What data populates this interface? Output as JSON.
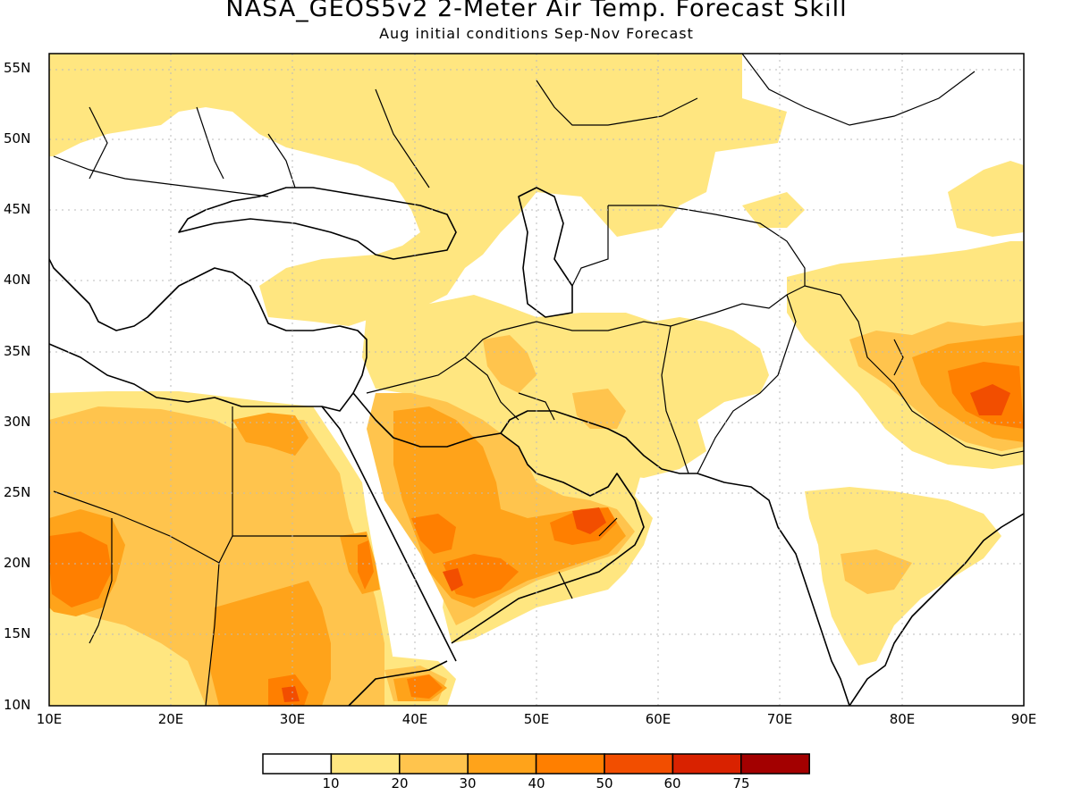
{
  "title": "NASA_GEOS5v2 2-Meter Air Temp. Forecast Skill",
  "subtitle": "Aug initial conditions  Sep-Nov Forecast",
  "map": {
    "lon_range": [
      10,
      90
    ],
    "lat_range": [
      10,
      56
    ],
    "lat_labels": [
      "55N",
      "50N",
      "45N",
      "40N",
      "35N",
      "30N",
      "25N",
      "20N",
      "15N",
      "10N"
    ],
    "lon_labels": [
      "10E",
      "20E",
      "30E",
      "40E",
      "50E",
      "60E",
      "70E",
      "80E",
      "90E"
    ],
    "grid": "dotted"
  },
  "colorbar": {
    "labels": [
      "10",
      "20",
      "30",
      "40",
      "50",
      "60",
      "75"
    ],
    "colors": [
      "#ffffff",
      "#ffe680",
      "#ffc44d",
      "#ffa31a",
      "#ff7f00",
      "#f24e00",
      "#d92200",
      "#a30000"
    ]
  }
}
